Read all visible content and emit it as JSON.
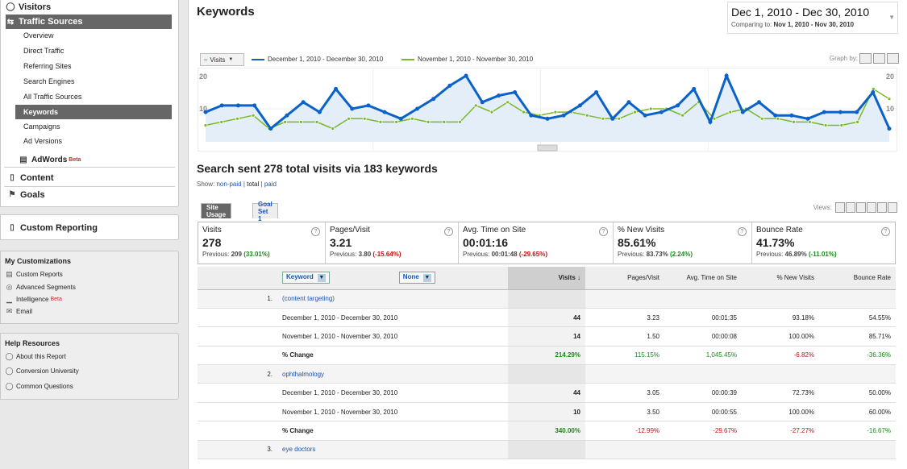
{
  "nav": {
    "visitors": "Visitors",
    "traffic_sources": "Traffic Sources",
    "items": [
      "Overview",
      "Direct Traffic",
      "Referring Sites",
      "Search Engines",
      "All Traffic Sources",
      "Keywords",
      "Campaigns",
      "Ad Versions"
    ],
    "adwords": "AdWords",
    "adwords_beta": "Beta",
    "content": "Content",
    "goals": "Goals",
    "custom_reporting": "Custom Reporting"
  },
  "my_customizations": {
    "title": "My Customizations",
    "items": [
      "Custom Reports",
      "Advanced Segments",
      "Intelligence",
      "Email"
    ],
    "intelligence_beta": "Beta"
  },
  "help": {
    "title": "Help Resources",
    "items": [
      "About this Report",
      "Conversion University",
      "Common Questions"
    ]
  },
  "page_title": "Keywords",
  "date": {
    "range": "Dec 1, 2010 - Dec 30, 2010",
    "comparing_label": "Comparing to:",
    "comparing_range": "Nov 1, 2010 - Nov 30, 2010"
  },
  "chart_controls": {
    "metric": "Visits",
    "graph_by": "Graph by:"
  },
  "chart_data": {
    "type": "line",
    "ylim": [
      0,
      20
    ],
    "y_ticks": [
      "20",
      "10"
    ],
    "series": [
      {
        "name": "December 1, 2010 - December 30, 2010",
        "color": "#0a62c9",
        "values": [
          9,
          11,
          11,
          11,
          4,
          8,
          12,
          9,
          16,
          10,
          11,
          9,
          7,
          10,
          13,
          17,
          20,
          12,
          14,
          15,
          8,
          7,
          8,
          11,
          15,
          7,
          12,
          8,
          9,
          11,
          16,
          6,
          20,
          9,
          12,
          8,
          8,
          7,
          9,
          9,
          9,
          15,
          4
        ]
      },
      {
        "name": "November 1, 2010 - November 30, 2010",
        "color": "#7ab82a",
        "values": [
          5,
          6,
          7,
          8,
          4,
          6,
          6,
          6,
          4,
          7,
          7,
          6,
          6,
          7,
          6,
          6,
          6,
          11,
          9,
          12,
          9,
          8,
          9,
          9,
          8,
          7,
          7,
          9,
          10,
          10,
          8,
          12,
          7,
          9,
          10,
          7,
          7,
          6,
          6,
          5,
          5,
          6,
          16,
          13
        ]
      }
    ]
  },
  "summary": {
    "title": "Search sent 278 total visits via 183 keywords",
    "show_label": "Show:",
    "non_paid": "non-paid",
    "sep": "|",
    "total": "total",
    "paid": "paid"
  },
  "tabs": [
    "Site Usage",
    "Goal Set 1"
  ],
  "views_label": "Views:",
  "scorecard": [
    {
      "name": "Visits",
      "value": "278",
      "prev_label": "Previous:",
      "prev": "209",
      "change": "(33.01%)",
      "dir": "pos"
    },
    {
      "name": "Pages/Visit",
      "value": "3.21",
      "prev_label": "Previous:",
      "prev": "3.80",
      "change": "(-15.64%)",
      "dir": "neg"
    },
    {
      "name": "Avg. Time on Site",
      "value": "00:01:16",
      "prev_label": "Previous:",
      "prev": "00:01:48",
      "change": "(-29.65%)",
      "dir": "neg"
    },
    {
      "name": "% New Visits",
      "value": "85.61%",
      "prev_label": "Previous:",
      "prev": "83.73%",
      "change": "(2.24%)",
      "dir": "pos"
    },
    {
      "name": "Bounce Rate",
      "value": "41.73%",
      "prev_label": "Previous:",
      "prev": "46.89%",
      "change": "(-11.01%)",
      "dir": "pos"
    }
  ],
  "table": {
    "dim1": "Keyword",
    "dim2": "None",
    "headers": [
      "Visits",
      "Pages/Visit",
      "Avg. Time on Site",
      "% New Visits",
      "Bounce Rate"
    ],
    "groups": [
      {
        "idx": "1.",
        "keyword": "(content targeting)",
        "rows": [
          {
            "label": "December 1, 2010 - December 30, 2010",
            "vals": [
              "44",
              "3.23",
              "00:01:35",
              "93.18%",
              "54.55%"
            ]
          },
          {
            "label": "November 1, 2010 - November 30, 2010",
            "vals": [
              "14",
              "1.50",
              "00:00:08",
              "100.00%",
              "85.71%"
            ]
          },
          {
            "label": "% Change",
            "vals": [
              "214.29%",
              "115.15%",
              "1,045.45%",
              "-6.82%",
              "-36.36%"
            ],
            "dirs": [
              "pos",
              "pos",
              "pos",
              "neg",
              "pos"
            ]
          }
        ]
      },
      {
        "idx": "2.",
        "keyword": "ophthalmology",
        "rows": [
          {
            "label": "December 1, 2010 - December 30, 2010",
            "vals": [
              "44",
              "3.05",
              "00:00:39",
              "72.73%",
              "50.00%"
            ]
          },
          {
            "label": "November 1, 2010 - November 30, 2010",
            "vals": [
              "10",
              "3.50",
              "00:00:55",
              "100.00%",
              "60.00%"
            ]
          },
          {
            "label": "% Change",
            "vals": [
              "340.00%",
              "-12.99%",
              "-29.67%",
              "-27.27%",
              "-16.67%"
            ],
            "dirs": [
              "pos",
              "neg",
              "neg",
              "neg",
              "pos"
            ]
          }
        ]
      },
      {
        "idx": "3.",
        "keyword": "eye doctors",
        "rows": []
      }
    ]
  }
}
